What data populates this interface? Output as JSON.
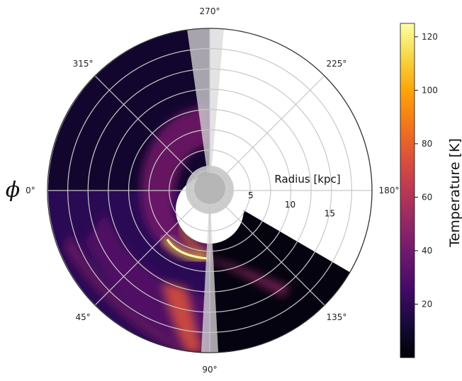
{
  "chart_data": {
    "type": "heatmap",
    "projection": "polar",
    "title": "",
    "angular_label": "ϕ",
    "radial_label": "Radius [kpc]",
    "angular_ticks": [
      "0°",
      "45°",
      "90°",
      "135°",
      "180°",
      "225°",
      "270°",
      "315°"
    ],
    "angular_tick_degrees": [
      0,
      45,
      90,
      135,
      180,
      225,
      270,
      315
    ],
    "radial_ticks": [
      "5",
      "10",
      "15"
    ],
    "radial_tick_values": [
      5,
      10,
      15
    ],
    "radial_range": [
      0,
      20
    ],
    "grid": true,
    "colorbar": {
      "label": "Temperature [K]",
      "colormap": "inferno",
      "range": [
        0,
        125
      ],
      "ticks": [
        "20",
        "40",
        "60",
        "80",
        "100",
        "120"
      ],
      "tick_values": [
        20,
        40,
        60,
        80,
        100,
        120
      ]
    },
    "masked_regions_deg": [
      [
        265,
        278
      ],
      [
        87,
        93
      ]
    ]
  }
}
